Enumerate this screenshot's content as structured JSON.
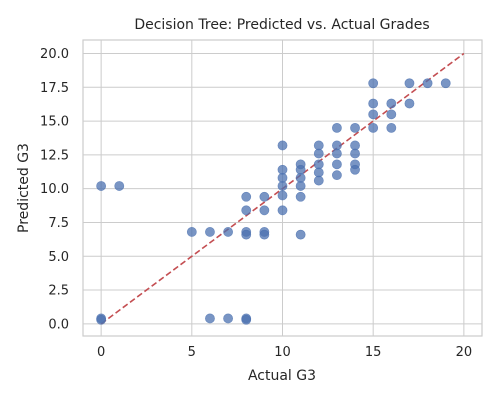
{
  "chart_data": {
    "type": "scatter",
    "title": "Decision Tree: Predicted vs. Actual Grades",
    "xlabel": "Actual G3",
    "ylabel": "Predicted G3",
    "xlim": [
      -1,
      21
    ],
    "ylim": [
      -0.9,
      21
    ],
    "xticks": [
      0,
      5,
      10,
      15,
      20
    ],
    "yticks": [
      0.0,
      2.5,
      5.0,
      7.5,
      10.0,
      12.5,
      15.0,
      17.5,
      20.0
    ],
    "xtick_labels": [
      "0",
      "5",
      "10",
      "15",
      "20"
    ],
    "ytick_labels": [
      "0.0",
      "2.5",
      "5.0",
      "7.5",
      "10.0",
      "12.5",
      "15.0",
      "17.5",
      "20.0"
    ],
    "grid": true,
    "colors": {
      "points": "#4c72b0",
      "reference_line": "#c44e52",
      "grid": "#cccccc",
      "spine": "#cccccc"
    },
    "reference_line": {
      "style": "dashed",
      "from": [
        0,
        0
      ],
      "to": [
        20,
        20
      ]
    },
    "points": [
      [
        0,
        10.2
      ],
      [
        1,
        10.2
      ],
      [
        0,
        0.4
      ],
      [
        0,
        0.3
      ],
      [
        5,
        6.8
      ],
      [
        6,
        6.8
      ],
      [
        7,
        6.8
      ],
      [
        6,
        0.4
      ],
      [
        7,
        0.4
      ],
      [
        8,
        0.4
      ],
      [
        8,
        0.3
      ],
      [
        8,
        9.4
      ],
      [
        8,
        8.4
      ],
      [
        8,
        6.8
      ],
      [
        8,
        6.6
      ],
      [
        9,
        9.4
      ],
      [
        9,
        8.4
      ],
      [
        9,
        6.8
      ],
      [
        9,
        6.6
      ],
      [
        10,
        13.2
      ],
      [
        10,
        11.4
      ],
      [
        10,
        10.8
      ],
      [
        10,
        10.2
      ],
      [
        10,
        9.5
      ],
      [
        10,
        8.4
      ],
      [
        11,
        11.8
      ],
      [
        11,
        11.4
      ],
      [
        11,
        10.8
      ],
      [
        11,
        10.2
      ],
      [
        11,
        9.4
      ],
      [
        11,
        6.6
      ],
      [
        12,
        13.2
      ],
      [
        12,
        12.6
      ],
      [
        12,
        11.8
      ],
      [
        12,
        11.2
      ],
      [
        12,
        10.6
      ],
      [
        13,
        14.5
      ],
      [
        13,
        13.2
      ],
      [
        13,
        12.6
      ],
      [
        13,
        11.8
      ],
      [
        13,
        11.0
      ],
      [
        14,
        14.5
      ],
      [
        14,
        13.2
      ],
      [
        14,
        12.6
      ],
      [
        14,
        11.8
      ],
      [
        14,
        11.4
      ],
      [
        15,
        17.8
      ],
      [
        15,
        16.3
      ],
      [
        15,
        15.5
      ],
      [
        15,
        14.5
      ],
      [
        16,
        16.3
      ],
      [
        16,
        15.5
      ],
      [
        16,
        14.5
      ],
      [
        17,
        17.8
      ],
      [
        17,
        16.3
      ],
      [
        18,
        17.8
      ],
      [
        19,
        17.8
      ]
    ]
  }
}
